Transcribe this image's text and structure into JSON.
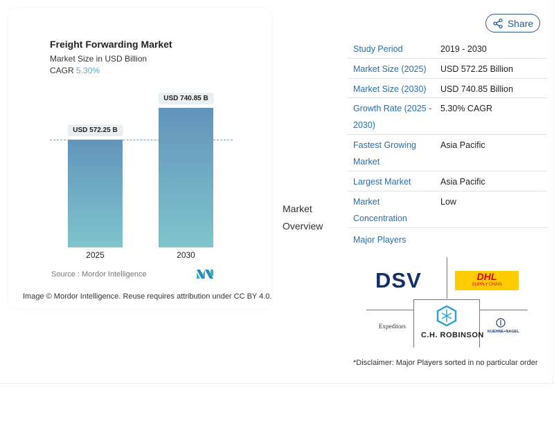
{
  "header": {
    "share_label": "Share",
    "share_icon": "share-icon"
  },
  "chart": {
    "title": "Freight Forwarding Market",
    "subtitle": "Market Size in USD Billion",
    "cagr_label": "CAGR",
    "cagr_value": "5.30%",
    "source": "Source :  Mordor Intelligence",
    "credit": "Image © Mordor Intelligence. Reuse requires attribution under CC BY 4.0.",
    "logo_text": "MN"
  },
  "chart_data": {
    "type": "bar",
    "title": "Freight Forwarding Market",
    "subtitle": "Market Size in USD Billion",
    "categories": [
      "2025",
      "2030"
    ],
    "values": [
      572.25,
      740.85
    ],
    "data_labels": [
      "USD 572.25 B",
      "USD 740.85 B"
    ],
    "ylim": [
      0,
      740.85
    ],
    "grid": false,
    "reference_line": 572.25,
    "colors": [
      "#6294bb",
      "#7fc4cc"
    ]
  },
  "overview": {
    "label_line1": "Market",
    "label_line2": "Overview"
  },
  "table": [
    {
      "key": "Study Period",
      "value": "2019 - 2030"
    },
    {
      "key": "Market Size (2025)",
      "value": "USD 572.25 Billion"
    },
    {
      "key": "Market Size (2030)",
      "value": "USD 740.85 Billion"
    },
    {
      "key": "Growth Rate (2025 - 2030)",
      "value": "5.30% CAGR"
    },
    {
      "key": "Fastest Growing Market",
      "value": "Asia Pacific"
    },
    {
      "key": "Largest Market",
      "value": "Asia Pacific"
    },
    {
      "key": "Market Concentration",
      "value": "Low"
    }
  ],
  "players": {
    "title": "Major Players",
    "logos": [
      "DSV",
      "DHL",
      "SUPPLY CHAIN",
      "Expeditors",
      "C.H. ROBINSON",
      "KUEHNE+NAGEL"
    ],
    "disclaimer": "*Disclaimer: Major Players sorted in no particular order"
  }
}
